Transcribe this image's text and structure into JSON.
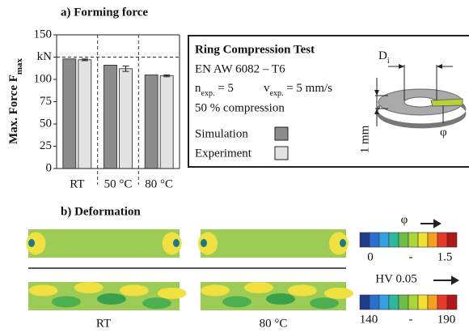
{
  "chart_data": {
    "type": "bar",
    "title": "a) Forming force",
    "y_label": "Max. Force F",
    "y_label_sub": "max",
    "categories": [
      "RT",
      "50 °C",
      "80 °C"
    ],
    "series": [
      {
        "name": "Simulation",
        "color": "#8c8c8c",
        "values": [
          123,
          116,
          105
        ]
      },
      {
        "name": "Experiment",
        "color": "#e2e2e2",
        "values": [
          122,
          112,
          104
        ],
        "errors": [
          1,
          3,
          1
        ]
      }
    ],
    "ylim": [
      0,
      150
    ],
    "yticks": [
      0,
      25,
      50,
      75,
      100,
      {
        "value": 125,
        "label": "kN"
      },
      150
    ],
    "hline": 125
  },
  "info_box": {
    "title": "Ring Compression Test",
    "material": "EN AW 6082 – T6",
    "n": "n",
    "n_sub": "exp.",
    "n_val": " = 5",
    "v": "v",
    "v_sub": "exp.",
    "v_val": " = 5 mm/s",
    "compression": "50 % compression",
    "diagram": {
      "d": "D",
      "d_sub": "i",
      "height": "1 mm",
      "phi": "φ"
    }
  },
  "deformation": {
    "title": "b) Deformation",
    "columns": [
      "RT",
      "80 °C"
    ],
    "phi_scale": {
      "title": "φ",
      "labels": [
        "0",
        "-",
        "1.5"
      ]
    },
    "hv_scale": {
      "title": "HV 0.05",
      "labels": [
        "140",
        "-",
        "190"
      ]
    }
  }
}
